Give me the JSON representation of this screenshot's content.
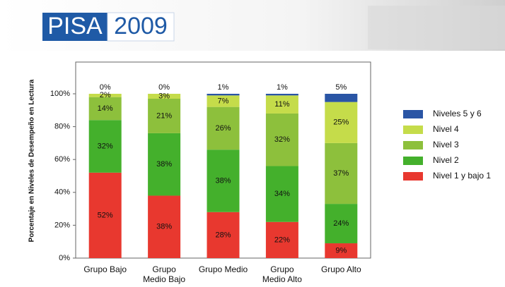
{
  "header": {
    "brand": "PISA",
    "year": "2009"
  },
  "chart_data": {
    "type": "stacked_bar",
    "y_label": "Porcentaje en Niveles de Desempeño en Lectura",
    "categories": [
      "Grupo Bajo",
      "Grupo\nMedio Bajo",
      "Grupo Medio",
      "Grupo\nMedio Alto",
      "Grupo Alto"
    ],
    "series": [
      {
        "name": "Nivel 1 y bajo 1",
        "color": "#e8382f",
        "values": [
          52,
          38,
          28,
          22,
          9
        ],
        "value_labels": [
          "52%",
          "38%",
          "28%",
          "22%",
          "9%"
        ]
      },
      {
        "name": "Nivel 2",
        "color": "#44b02c",
        "values": [
          32,
          38,
          38,
          34,
          24
        ],
        "value_labels": [
          "32%",
          "38%",
          "38%",
          "34%",
          "24%"
        ]
      },
      {
        "name": "Nivel 3",
        "color": "#8dc03c",
        "values": [
          14,
          21,
          26,
          32,
          37
        ],
        "value_labels": [
          "14%",
          "21%",
          "26%",
          "32%",
          "37%"
        ]
      },
      {
        "name": "Nivel 4",
        "color": "#c5dc4a",
        "values": [
          2,
          3,
          7,
          11,
          25
        ],
        "value_labels": [
          "2%",
          "3%",
          "7%",
          "11%",
          "25%"
        ]
      },
      {
        "name": "Niveles 5 y 6",
        "color": "#2a55a5",
        "values": [
          0,
          0,
          1,
          1,
          5
        ],
        "value_labels": [
          "0%",
          "0%",
          "1%",
          "1%",
          "5%"
        ]
      }
    ],
    "ylim": [
      0,
      100
    ],
    "yticks": [
      {
        "value": 0,
        "label": "0%"
      },
      {
        "value": 20,
        "label": "20%"
      },
      {
        "value": 40,
        "label": "40%"
      },
      {
        "value": 60,
        "label": "60%"
      },
      {
        "value": 80,
        "label": "80%"
      },
      {
        "value": 100,
        "label": "100%"
      }
    ],
    "legend": "right"
  }
}
